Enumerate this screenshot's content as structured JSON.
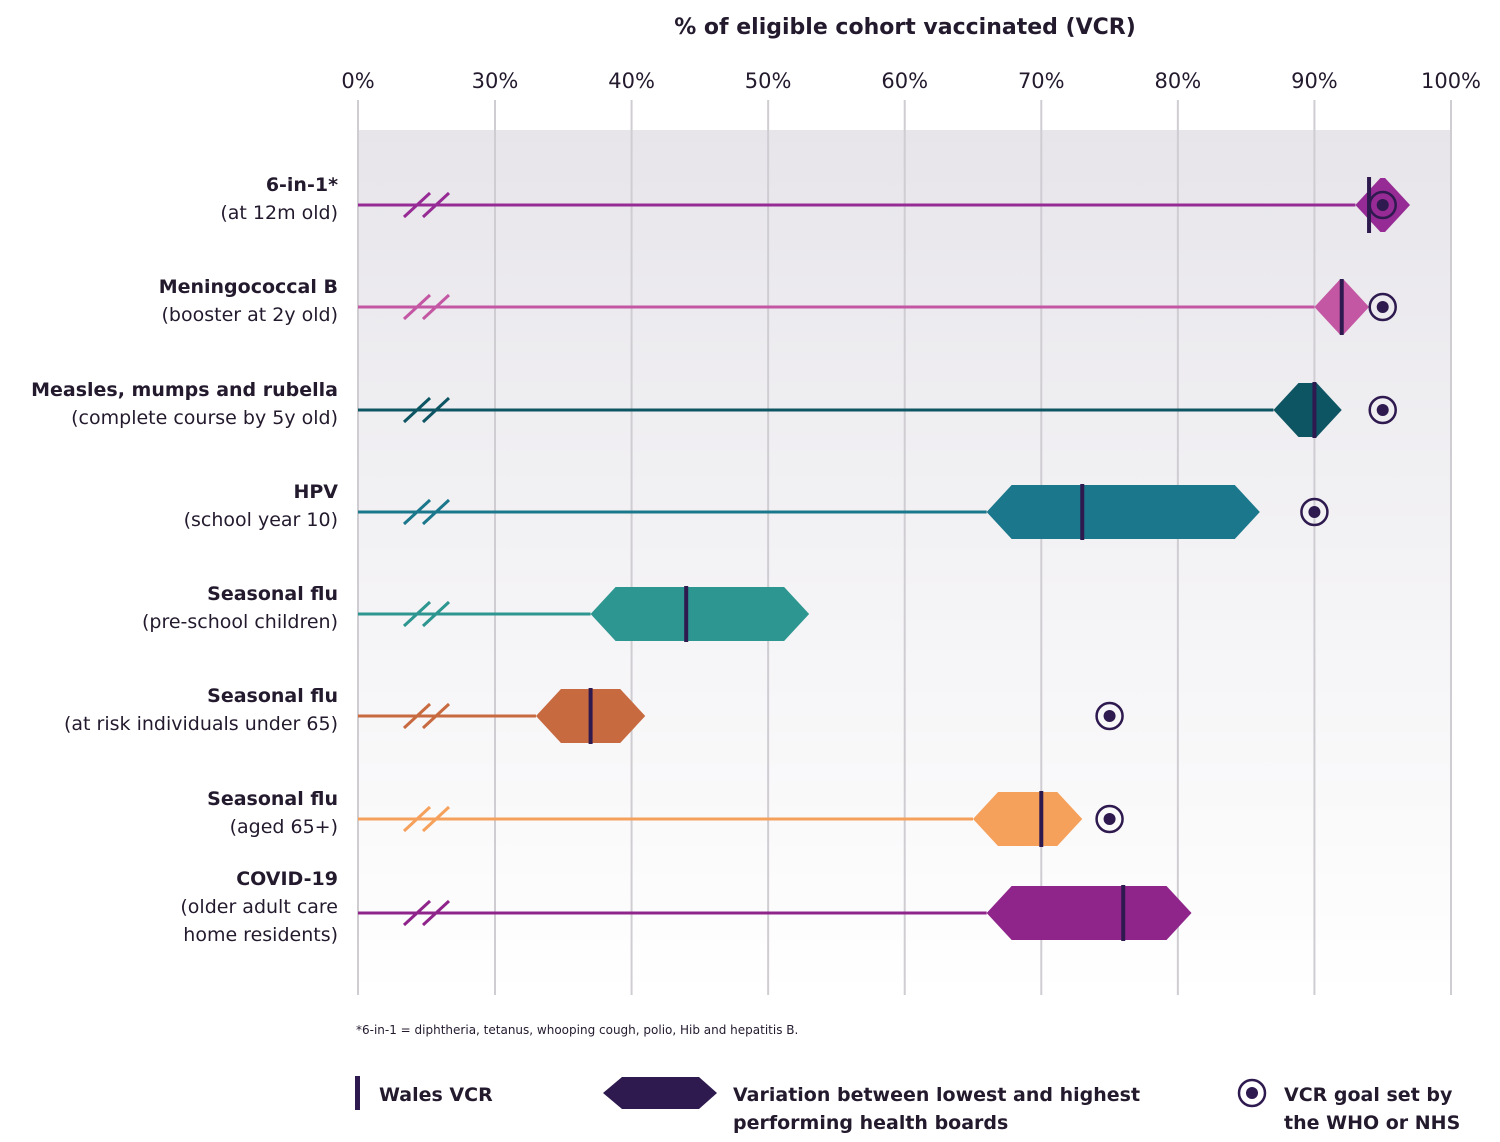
{
  "chart_data": {
    "type": "range-dot",
    "title": "% of eligible cohort vaccinated (VCR)",
    "x_ticks": [
      "0%",
      "30%",
      "40%",
      "50%",
      "60%",
      "70%",
      "80%",
      "90%",
      "100%"
    ],
    "x_tick_values": [
      0,
      30,
      40,
      50,
      60,
      70,
      80,
      90,
      100
    ],
    "axis_break": "between 0% and 30%",
    "xlim": [
      30,
      100
    ],
    "grid": true,
    "rows": [
      {
        "label": "6-in-1*",
        "sublabel": [
          "(at 12m old)"
        ],
        "color": "#972b95",
        "min": 93,
        "max": 97,
        "wales_vcr": 94,
        "goal": 95
      },
      {
        "label": "Meningococcal B",
        "sublabel": [
          "(booster at 2y old)"
        ],
        "color": "#c457a3",
        "min": 90,
        "max": 94,
        "wales_vcr": 92,
        "goal": 95
      },
      {
        "label": "Measles, mumps and rubella",
        "sublabel": [
          "(complete course by 5y old)"
        ],
        "color": "#0d5563",
        "min": 87,
        "max": 92,
        "wales_vcr": 90,
        "goal": 95
      },
      {
        "label": "HPV",
        "sublabel": [
          "(school year 10)"
        ],
        "color": "#1b778b",
        "min": 66,
        "max": 86,
        "wales_vcr": 73,
        "goal": 90
      },
      {
        "label": "Seasonal flu",
        "sublabel": [
          "(pre-school children)"
        ],
        "color": "#2d9690",
        "min": 37,
        "max": 53,
        "wales_vcr": 44,
        "goal": null
      },
      {
        "label": "Seasonal flu",
        "sublabel": [
          "(at risk individuals under 65)"
        ],
        "color": "#c86a40",
        "min": 33,
        "max": 41,
        "wales_vcr": 37,
        "goal": 75
      },
      {
        "label": "Seasonal flu",
        "sublabel": [
          "(aged 65+)"
        ],
        "color": "#f5a15c",
        "min": 65,
        "max": 73,
        "wales_vcr": 70,
        "goal": 75
      },
      {
        "label": "COVID-19",
        "sublabel": [
          "(older adult care",
          "home residents)"
        ],
        "color": "#8f258b",
        "min": 66,
        "max": 81,
        "wales_vcr": 76,
        "goal": null
      }
    ],
    "footnote": "*6-in-1 = diphtheria, tetanus, whooping cough, polio, Hib and hepatitis B.",
    "legend": {
      "position": "bottom",
      "wales_vcr": "Wales VCR",
      "variation": [
        "Variation between lowest and highest",
        "performing health boards"
      ],
      "goal": [
        "VCR goal set by",
        "the WHO or NHS"
      ]
    },
    "marker_color": "#2e1a4f"
  }
}
